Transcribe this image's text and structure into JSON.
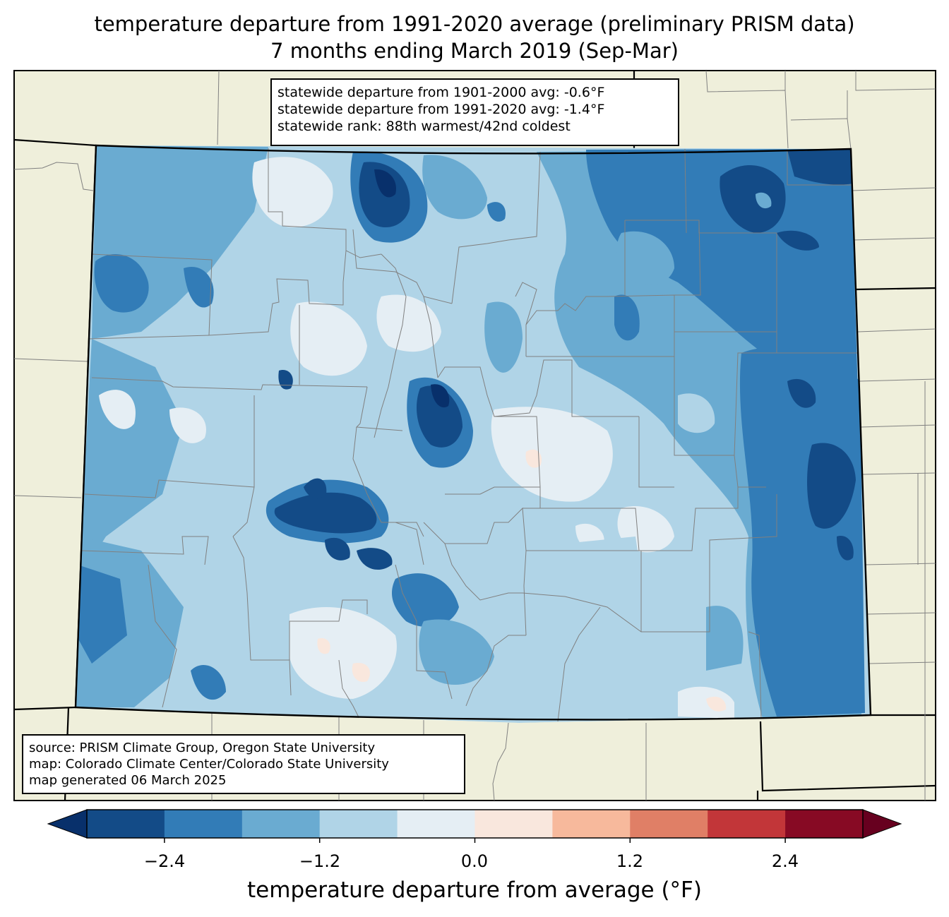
{
  "title": {
    "line1": "temperature departure from 1991-2020 average (preliminary PRISM data)",
    "line2": "7 months ending March 2019 (Sep-Mar)"
  },
  "stats": {
    "line1": "statewide departure from 1901-2000 avg: -0.6°F",
    "line2": "statewide departure from 1991-2020 avg: -1.4°F",
    "line3": "statewide rank: 88th warmest/42nd coldest"
  },
  "source": {
    "line1": "source: PRISM Climate Group, Oregon State University",
    "line2": "map: Colorado Climate Center/Colorado State University",
    "line3": "map generated 06 March 2025"
  },
  "colorbar": {
    "label": "temperature departure from average (°F)",
    "ticks": [
      "−2.4",
      "−1.2",
      "0.0",
      "1.2",
      "2.4"
    ],
    "bins": [
      {
        "min": -3.0,
        "max": -2.4,
        "color": "#134b87"
      },
      {
        "min": -2.4,
        "max": -1.8,
        "color": "#327cb7"
      },
      {
        "min": -1.8,
        "max": -1.2,
        "color": "#6aabd1"
      },
      {
        "min": -1.2,
        "max": -0.6,
        "color": "#b0d4e7"
      },
      {
        "min": -0.6,
        "max": 0.0,
        "color": "#e5eef4"
      },
      {
        "min": 0.0,
        "max": 0.6,
        "color": "#f9e7dd"
      },
      {
        "min": 0.6,
        "max": 1.2,
        "color": "#f7b99c"
      },
      {
        "min": 1.2,
        "max": 1.8,
        "color": "#e07f66"
      },
      {
        "min": 1.8,
        "max": 2.4,
        "color": "#c23639"
      },
      {
        "min": 2.4,
        "max": 3.0,
        "color": "#870a24"
      }
    ],
    "under_color": "#08306b",
    "over_color": "#67001f"
  },
  "colors": {
    "land": "#efefdb",
    "state_border": "#000000",
    "county_border": "#808080"
  }
}
